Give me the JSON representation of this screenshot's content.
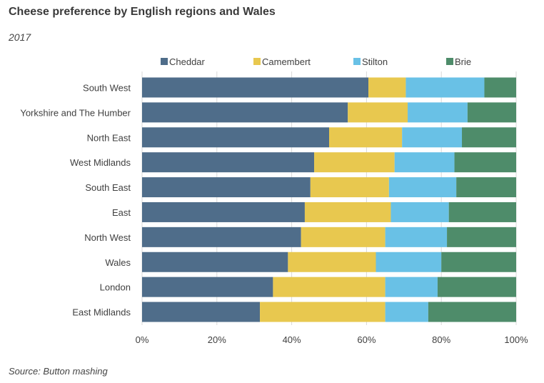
{
  "title": "Cheese preference by English regions and Wales",
  "subtitle": "2017",
  "source": "Source: Button mashing",
  "chart_data": {
    "type": "bar",
    "orientation": "horizontal",
    "stacked": "percent",
    "categories": [
      "South West",
      "Yorkshire and The Humber",
      "North East",
      "West Midlands",
      "South East",
      "East",
      "North West",
      "Wales",
      "London",
      "East Midlands"
    ],
    "series": [
      {
        "name": "Cheddar",
        "color": "#4f6d8a",
        "values": [
          60.5,
          55.0,
          50.0,
          46.0,
          45.0,
          43.5,
          42.5,
          39.0,
          35.0,
          31.5
        ]
      },
      {
        "name": "Camembert",
        "color": "#e8c84f",
        "values": [
          10.0,
          16.0,
          19.5,
          21.5,
          21.0,
          23.0,
          22.5,
          23.5,
          30.0,
          33.5
        ]
      },
      {
        "name": "Stilton",
        "color": "#69c1e6",
        "values": [
          21.0,
          16.0,
          16.0,
          16.0,
          18.0,
          15.5,
          16.5,
          17.5,
          14.0,
          11.5
        ]
      },
      {
        "name": "Brie",
        "color": "#4e8c6a",
        "values": [
          8.5,
          13.0,
          14.5,
          16.5,
          16.0,
          18.0,
          18.5,
          20.0,
          21.0,
          23.5
        ]
      }
    ],
    "xlim": [
      0,
      100
    ],
    "xticks": [
      "0%",
      "20%",
      "40%",
      "60%",
      "80%",
      "100%"
    ],
    "grid": true,
    "legend_position": "top"
  }
}
